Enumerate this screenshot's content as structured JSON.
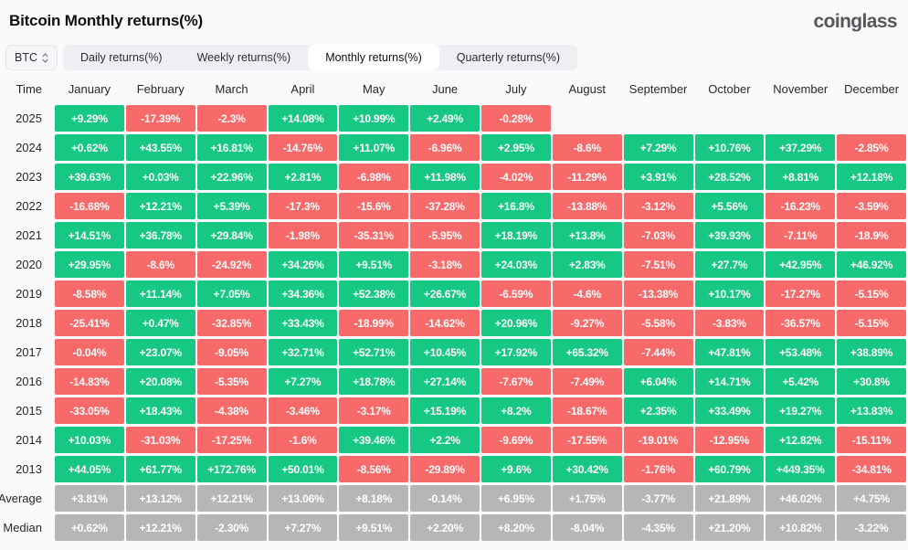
{
  "header": {
    "title": "Bitcoin Monthly returns(%)",
    "logo": "coinglass"
  },
  "controls": {
    "symbol": "BTC",
    "tabs": [
      {
        "label": "Daily returns(%)",
        "active": false
      },
      {
        "label": "Weekly returns(%)",
        "active": false
      },
      {
        "label": "Monthly returns(%)",
        "active": true
      },
      {
        "label": "Quarterly returns(%)",
        "active": false
      }
    ]
  },
  "colors": {
    "positive": "#17C784",
    "negative": "#F86A6A",
    "neutral": "#B6B6B6"
  },
  "chart_data": {
    "type": "heatmap",
    "title": "Bitcoin Monthly returns(%)",
    "columns": [
      "Time",
      "January",
      "February",
      "March",
      "April",
      "May",
      "June",
      "July",
      "August",
      "September",
      "October",
      "November",
      "December"
    ],
    "rows": [
      {
        "label": "2025",
        "summary": false,
        "values": [
          "+9.29%",
          "-17.39%",
          "-2.3%",
          "+14.08%",
          "+10.99%",
          "+2.49%",
          "-0.28%",
          null,
          null,
          null,
          null,
          null
        ]
      },
      {
        "label": "2024",
        "summary": false,
        "values": [
          "+0.62%",
          "+43.55%",
          "+16.81%",
          "-14.76%",
          "+11.07%",
          "-6.96%",
          "+2.95%",
          "-8.6%",
          "+7.29%",
          "+10.76%",
          "+37.29%",
          "-2.85%"
        ]
      },
      {
        "label": "2023",
        "summary": false,
        "values": [
          "+39.63%",
          "+0.03%",
          "+22.96%",
          "+2.81%",
          "-6.98%",
          "+11.98%",
          "-4.02%",
          "-11.29%",
          "+3.91%",
          "+28.52%",
          "+8.81%",
          "+12.18%"
        ]
      },
      {
        "label": "2022",
        "summary": false,
        "values": [
          "-16.68%",
          "+12.21%",
          "+5.39%",
          "-17.3%",
          "-15.6%",
          "-37.28%",
          "+16.8%",
          "-13.88%",
          "-3.12%",
          "+5.56%",
          "-16.23%",
          "-3.59%"
        ]
      },
      {
        "label": "2021",
        "summary": false,
        "values": [
          "+14.51%",
          "+36.78%",
          "+29.84%",
          "-1.98%",
          "-35.31%",
          "-5.95%",
          "+18.19%",
          "+13.8%",
          "-7.03%",
          "+39.93%",
          "-7.11%",
          "-18.9%"
        ]
      },
      {
        "label": "2020",
        "summary": false,
        "values": [
          "+29.95%",
          "-8.6%",
          "-24.92%",
          "+34.26%",
          "+9.51%",
          "-3.18%",
          "+24.03%",
          "+2.83%",
          "-7.51%",
          "+27.7%",
          "+42.95%",
          "+46.92%"
        ]
      },
      {
        "label": "2019",
        "summary": false,
        "values": [
          "-8.58%",
          "+11.14%",
          "+7.05%",
          "+34.36%",
          "+52.38%",
          "+26.67%",
          "-6.59%",
          "-4.6%",
          "-13.38%",
          "+10.17%",
          "-17.27%",
          "-5.15%"
        ]
      },
      {
        "label": "2018",
        "summary": false,
        "values": [
          "-25.41%",
          "+0.47%",
          "-32.85%",
          "+33.43%",
          "-18.99%",
          "-14.62%",
          "+20.96%",
          "-9.27%",
          "-5.58%",
          "-3.83%",
          "-36.57%",
          "-5.15%"
        ]
      },
      {
        "label": "2017",
        "summary": false,
        "values": [
          "-0.04%",
          "+23.07%",
          "-9.05%",
          "+32.71%",
          "+52.71%",
          "+10.45%",
          "+17.92%",
          "+65.32%",
          "-7.44%",
          "+47.81%",
          "+53.48%",
          "+38.89%"
        ]
      },
      {
        "label": "2016",
        "summary": false,
        "values": [
          "-14.83%",
          "+20.08%",
          "-5.35%",
          "+7.27%",
          "+18.78%",
          "+27.14%",
          "-7.67%",
          "-7.49%",
          "+6.04%",
          "+14.71%",
          "+5.42%",
          "+30.8%"
        ]
      },
      {
        "label": "2015",
        "summary": false,
        "values": [
          "-33.05%",
          "+18.43%",
          "-4.38%",
          "-3.46%",
          "-3.17%",
          "+15.19%",
          "+8.2%",
          "-18.67%",
          "+2.35%",
          "+33.49%",
          "+19.27%",
          "+13.83%"
        ]
      },
      {
        "label": "2014",
        "summary": false,
        "values": [
          "+10.03%",
          "-31.03%",
          "-17.25%",
          "-1.6%",
          "+39.46%",
          "+2.2%",
          "-9.69%",
          "-17.55%",
          "-19.01%",
          "-12.95%",
          "+12.82%",
          "-15.11%"
        ]
      },
      {
        "label": "2013",
        "summary": false,
        "values": [
          "+44.05%",
          "+61.77%",
          "+172.76%",
          "+50.01%",
          "-8.56%",
          "-29.89%",
          "+9.6%",
          "+30.42%",
          "-1.76%",
          "+60.79%",
          "+449.35%",
          "-34.81%"
        ]
      },
      {
        "label": "Average",
        "summary": true,
        "values": [
          "+3.81%",
          "+13.12%",
          "+12.21%",
          "+13.06%",
          "+8.18%",
          "-0.14%",
          "+6.95%",
          "+1.75%",
          "-3.77%",
          "+21.89%",
          "+46.02%",
          "+4.75%"
        ]
      },
      {
        "label": "Median",
        "summary": true,
        "values": [
          "+0.62%",
          "+12.21%",
          "-2.30%",
          "+7.27%",
          "+9.51%",
          "+2.20%",
          "+8.20%",
          "-8.04%",
          "-4.35%",
          "+21.20%",
          "+10.82%",
          "-3.22%"
        ]
      }
    ]
  }
}
